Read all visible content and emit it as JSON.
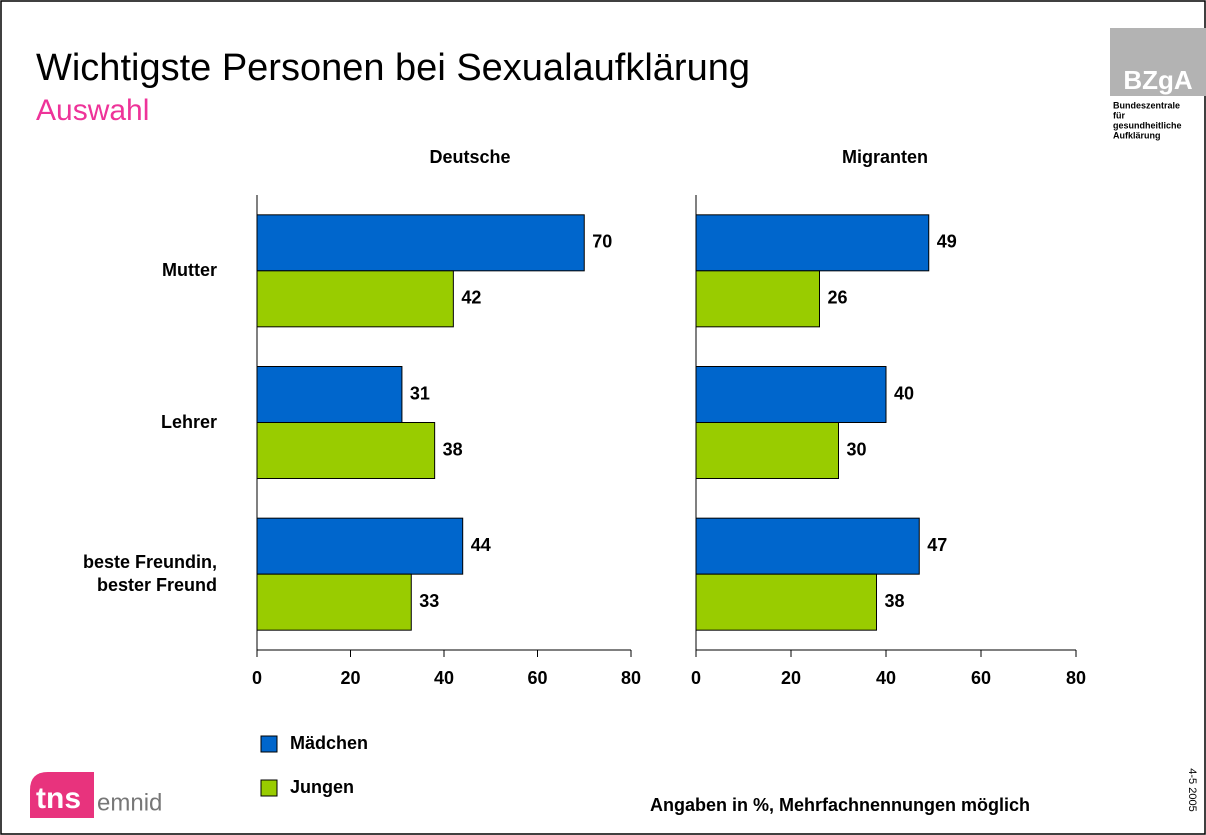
{
  "title": "Wichtigste Personen bei Sexualaufklärung",
  "subtitle": "Auswahl",
  "logo": {
    "mark": "BZgA",
    "lines": [
      "Bundeszentrale",
      "für",
      "gesundheitliche",
      "Aufklärung"
    ]
  },
  "agency": {
    "mark": "tns",
    "name": "emnid"
  },
  "footnote": "Angaben in %,  Mehrfachnennungen möglich",
  "code": "4-5 2005",
  "chart_data": [
    {
      "type": "bar",
      "orientation": "horizontal",
      "title": "Deutsche",
      "categories": [
        "Mutter",
        "Lehrer",
        "beste Freundin,\nbester Freund"
      ],
      "series": [
        {
          "name": "Mädchen",
          "color": "#0066cc",
          "values": [
            70,
            31,
            44
          ]
        },
        {
          "name": "Jungen",
          "color": "#99cc00",
          "values": [
            42,
            38,
            33
          ]
        }
      ],
      "xlim": [
        0,
        80
      ],
      "xticks": [
        0,
        20,
        40,
        60,
        80
      ]
    },
    {
      "type": "bar",
      "orientation": "horizontal",
      "title": "Migranten",
      "categories": [
        null,
        null,
        null
      ],
      "series": [
        {
          "color": "#0066cc",
          "values": [
            49,
            40,
            47
          ]
        },
        {
          "color": "#99cc00",
          "values": [
            26,
            30,
            38
          ]
        }
      ],
      "xlim": [
        0,
        80
      ],
      "xticks": [
        0,
        20,
        40,
        60,
        80
      ]
    }
  ]
}
